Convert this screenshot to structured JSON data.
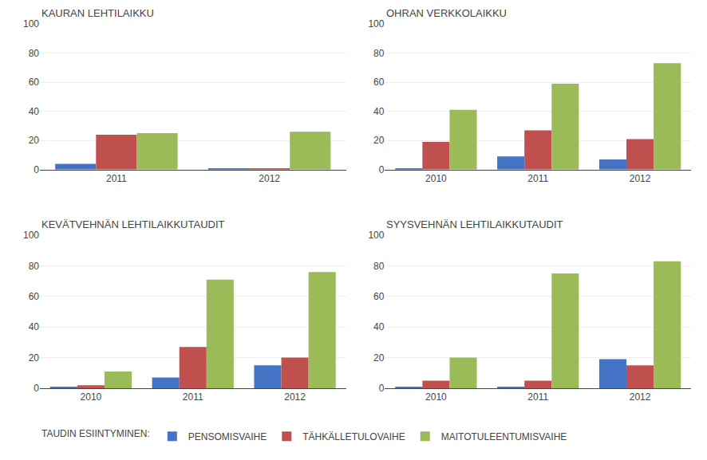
{
  "chart_data": [
    {
      "type": "bar",
      "title": "KAURAN LEHTILAIKKU",
      "categories": [
        "2011",
        "2012"
      ],
      "series": [
        {
          "name": "PENSOMISVAIHE",
          "color": "#4472C4",
          "values": [
            4,
            1
          ]
        },
        {
          "name": "TÄHKÄLLETULOVAIHE",
          "color": "#C0504D",
          "values": [
            24,
            1
          ]
        },
        {
          "name": "MAITOTULEENTUMISVAIHE",
          "color": "#9BBB59",
          "values": [
            25,
            26
          ]
        }
      ],
      "ylim": [
        0,
        100
      ],
      "yticks": [
        0,
        20,
        40,
        60,
        80,
        100
      ],
      "grid": true,
      "legend": "bottom",
      "legend_title": "TAUDIN ESIINTYMINEN:"
    },
    {
      "type": "bar",
      "title": "OHRAN VERKKOLAIKKU",
      "categories": [
        "2010",
        "2011",
        "2012"
      ],
      "series": [
        {
          "name": "PENSOMISVAIHE",
          "color": "#4472C4",
          "values": [
            1,
            9,
            7
          ]
        },
        {
          "name": "TÄHKÄLLETULOVAIHE",
          "color": "#C0504D",
          "values": [
            19,
            27,
            21
          ]
        },
        {
          "name": "MAITOTULEENTUMISVAIHE",
          "color": "#9BBB59",
          "values": [
            41,
            59,
            73
          ]
        }
      ],
      "ylim": [
        0,
        100
      ],
      "yticks": [
        0,
        20,
        40,
        60,
        80,
        100
      ],
      "grid": true
    },
    {
      "type": "bar",
      "title": "KEVÄTVEHNÄN LEHTILAIKKUTAUDIT",
      "categories": [
        "2010",
        "2011",
        "2012"
      ],
      "series": [
        {
          "name": "PENSOMISVAIHE",
          "color": "#4472C4",
          "values": [
            1,
            7,
            15
          ]
        },
        {
          "name": "TÄHKÄLLETULOVAIHE",
          "color": "#C0504D",
          "values": [
            2,
            27,
            20
          ]
        },
        {
          "name": "MAITOTULEENTUMISVAIHE",
          "color": "#9BBB59",
          "values": [
            11,
            71,
            76
          ]
        }
      ],
      "ylim": [
        0,
        100
      ],
      "yticks": [
        0,
        20,
        40,
        60,
        80,
        100
      ],
      "grid": true
    },
    {
      "type": "bar",
      "title": "SYYSVEHNÄN LEHTILAIKKUTAUDIT",
      "categories": [
        "2010",
        "2011",
        "2012"
      ],
      "series": [
        {
          "name": "PENSOMISVAIHE",
          "color": "#4472C4",
          "values": [
            1,
            1,
            19
          ]
        },
        {
          "name": "TÄHKÄLLETULOVAIHE",
          "color": "#C0504D",
          "values": [
            5,
            5,
            15
          ]
        },
        {
          "name": "MAITOTULEENTUMISVAIHE",
          "color": "#9BBB59",
          "values": [
            20,
            75,
            83
          ]
        }
      ],
      "ylim": [
        0,
        100
      ],
      "yticks": [
        0,
        20,
        40,
        60,
        80,
        100
      ],
      "grid": true
    }
  ]
}
